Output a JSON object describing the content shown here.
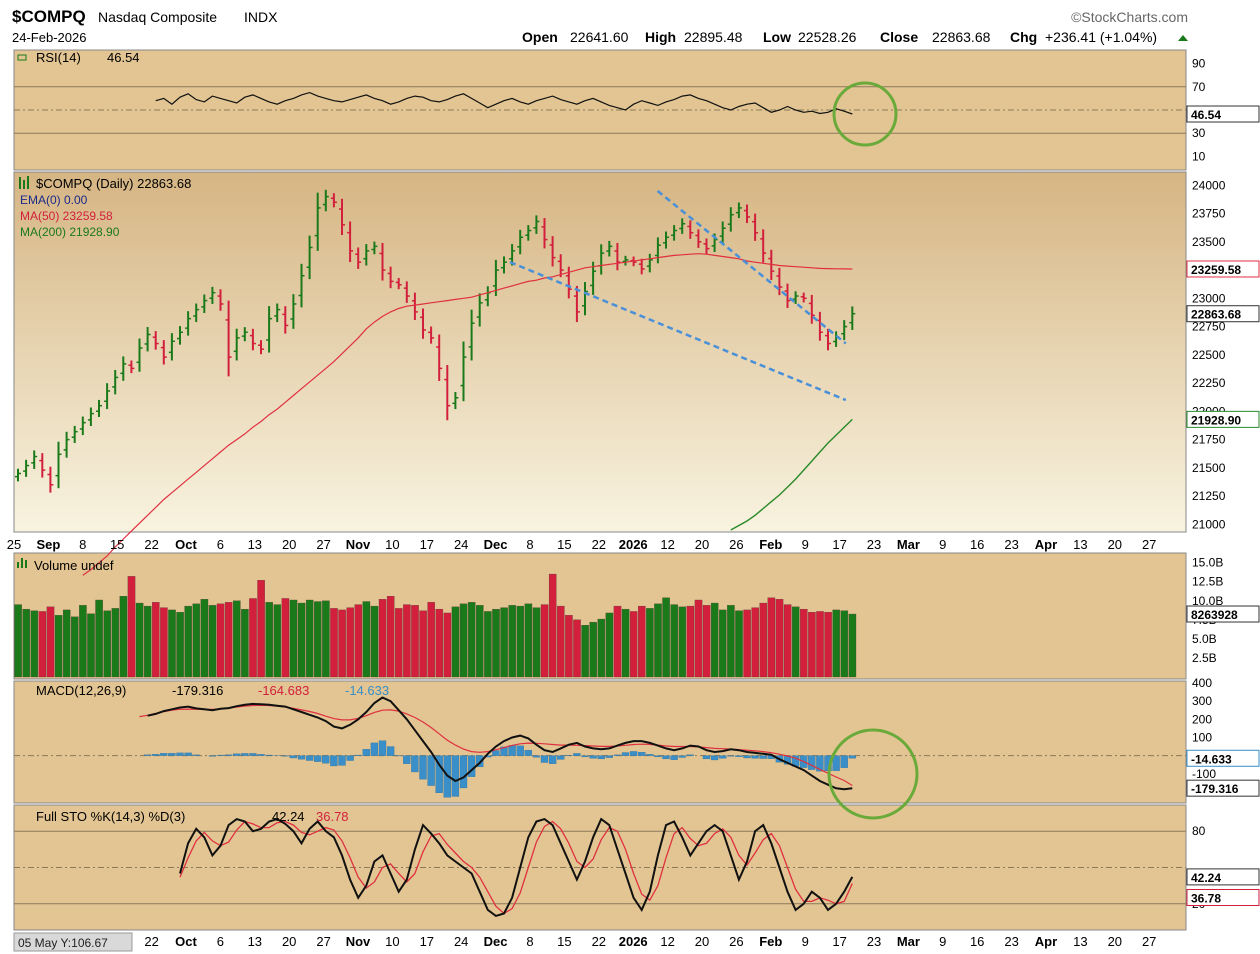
{
  "header": {
    "symbol": "$COMPQ",
    "name": "Nasdaq Composite",
    "exchange": "INDX",
    "date": "24-Feb-2026",
    "brand": "©StockCharts.com",
    "open_label": "Open",
    "open": "22641.60",
    "high_label": "High",
    "high": "22895.48",
    "low_label": "Low",
    "low": "22528.26",
    "close_label": "Close",
    "close": "22863.68",
    "chg_label": "Chg",
    "chg": "+236.41 (+1.04%)"
  },
  "colors": {
    "panel_bg": "#e2c592",
    "price_bg_top": "#d9b989",
    "price_bg_bottom": "#f7f1dc",
    "up": "#1a7a1a",
    "down": "#d21f3c",
    "ma50": "#e03040",
    "ma200": "#2a8a2a",
    "macd_hist": "#3a8fc8",
    "trendline": "#4a90d9",
    "highlight_circle": "#6aaa3a"
  },
  "chart_data": [
    {
      "type": "line",
      "panel": "rsi",
      "title": "RSI(14)",
      "last_value": "46.54",
      "ylim": [
        0,
        100
      ],
      "y_ticks": [
        "90",
        "70",
        "30",
        "10"
      ],
      "reference_lines": [
        70,
        50,
        30
      ],
      "marker": "46.54",
      "values": [
        58,
        60,
        55,
        61,
        64,
        59,
        57,
        62,
        60,
        58,
        56,
        61,
        63,
        60,
        57,
        55,
        58,
        60,
        63,
        65,
        62,
        60,
        58,
        57,
        59,
        61,
        63,
        60,
        58,
        55,
        57,
        60,
        62,
        61,
        58,
        57,
        59,
        62,
        64,
        60,
        56,
        52,
        55,
        58,
        60,
        57,
        55,
        58,
        60,
        62,
        59,
        57,
        55,
        58,
        60,
        57,
        54,
        52,
        50,
        55,
        58,
        56,
        54,
        57,
        59,
        62,
        63,
        60,
        58,
        55,
        52,
        50,
        53,
        55,
        56,
        52,
        48,
        50,
        53,
        50,
        48,
        49,
        47,
        48,
        51,
        49,
        46.54
      ]
    },
    {
      "type": "bar",
      "panel": "price",
      "title": "$COMPQ (Daily) 22863.68",
      "legend": [
        "EMA(0) 0.00",
        "MA(50) 23259.58",
        "MA(200) 21928.90"
      ],
      "ylim": [
        20950,
        24100
      ],
      "y_ticks": [
        "24000",
        "23750",
        "23500",
        "23250",
        "23000",
        "22750",
        "22500",
        "22250",
        "22000",
        "21750",
        "21500",
        "21250",
        "21000"
      ],
      "price_labels": [
        "23259.58",
        "22863.68",
        "21928.90"
      ],
      "x_tick_labels": [
        "25",
        "Sep",
        "8",
        "15",
        "22",
        "Oct",
        "6",
        "13",
        "20",
        "27",
        "Nov",
        "10",
        "17",
        "24",
        "Dec",
        "8",
        "15",
        "22",
        "2026",
        "12",
        "20",
        "26",
        "Feb",
        "9",
        "17",
        "23",
        "Mar",
        "9",
        "16",
        "23",
        "Apr",
        "13",
        "20",
        "27"
      ],
      "closes": [
        21450,
        21520,
        21600,
        21480,
        21350,
        21620,
        21750,
        21820,
        21900,
        21980,
        22050,
        22180,
        22300,
        22420,
        22380,
        22560,
        22680,
        22600,
        22480,
        22620,
        22700,
        22820,
        22900,
        22980,
        23050,
        22950,
        22480,
        22650,
        22700,
        22600,
        22550,
        22820,
        22900,
        22760,
        22950,
        23200,
        23450,
        23800,
        23900,
        23850,
        23650,
        23420,
        23320,
        23420,
        23460,
        23250,
        23150,
        23120,
        23020,
        22880,
        22720,
        22650,
        22380,
        22050,
        22120,
        22480,
        22780,
        22960,
        23050,
        23250,
        23320,
        23420,
        23540,
        23600,
        23680,
        23520,
        23360,
        23250,
        23080,
        22880,
        23060,
        23240,
        23400,
        23460,
        23320,
        23340,
        23320,
        23260,
        23340,
        23470,
        23540,
        23600,
        23660,
        23580,
        23500,
        23440,
        23520,
        23620,
        23740,
        23800,
        23720,
        23580,
        23400,
        23240,
        23100,
        22980,
        23020,
        23000,
        22850,
        22700,
        22600,
        22660,
        22750,
        22864
      ],
      "ma50": [
        20550,
        20600,
        20660,
        20720,
        20800,
        20870,
        20940,
        21010,
        21080,
        21150,
        21220,
        21280,
        21340,
        21400,
        21460,
        21520,
        21580,
        21640,
        21700,
        21750,
        21800,
        21860,
        21910,
        21970,
        22020,
        22080,
        22140,
        22200,
        22260,
        22320,
        22380,
        22440,
        22510,
        22580,
        22650,
        22730,
        22790,
        22840,
        22880,
        22910,
        22930,
        22940,
        22950,
        22960,
        22970,
        22980,
        22990,
        23000,
        23010,
        23030,
        23050,
        23070,
        23090,
        23110,
        23130,
        23150,
        23160,
        23180,
        23190,
        23210,
        23230,
        23250,
        23270,
        23280,
        23290,
        23300,
        23310,
        23320,
        23330,
        23340,
        23350,
        23360,
        23370,
        23380,
        23385,
        23390,
        23395,
        23390,
        23380,
        23370,
        23360,
        23350,
        23330,
        23320,
        23310,
        23300,
        23290,
        23285,
        23280,
        23275,
        23270,
        23265,
        23263,
        23261,
        23260,
        23259.58
      ],
      "ma200": [
        20950,
        20990,
        21030,
        21080,
        21140,
        21200,
        21260,
        21330,
        21400,
        21480,
        21560,
        21640,
        21720,
        21790,
        21860,
        21928.9
      ],
      "trendlines": [
        {
          "from": [
            26,
            23950
          ],
          "to": [
            33,
            22600
          ]
        },
        {
          "from": [
            20,
            23320
          ],
          "to": [
            33,
            22100
          ]
        }
      ]
    },
    {
      "type": "bar",
      "panel": "volume",
      "title": "Volume undef",
      "y_ticks": [
        "15.0B",
        "12.5B",
        "10.0B",
        "7.5B",
        "5.0B",
        "2.5B"
      ],
      "ylim": [
        0,
        16
      ],
      "marker": "8263928",
      "values": [
        9.5,
        8.9,
        8.7,
        8.6,
        9.2,
        8.1,
        8.8,
        7.9,
        9.4,
        8.3,
        10.1,
        8.7,
        9.0,
        10.6,
        13.2,
        9.7,
        9.3,
        9.8,
        9.1,
        8.8,
        8.5,
        9.3,
        9.6,
        10.2,
        9.4,
        9.6,
        9.8,
        10.0,
        8.9,
        10.3,
        12.7,
        9.8,
        9.5,
        10.3,
        10.1,
        9.7,
        10.1,
        9.9,
        10.0,
        9.0,
        8.8,
        9.1,
        9.5,
        9.9,
        9.3,
        10.2,
        10.6,
        9.0,
        9.5,
        9.4,
        8.7,
        9.8,
        8.9,
        8.4,
        9.2,
        9.6,
        9.8,
        9.4,
        8.6,
        8.9,
        9.1,
        9.4,
        9.3,
        9.6,
        9.1,
        9.5,
        13.5,
        9.3,
        8.1,
        7.5,
        6.8,
        7.2,
        7.6,
        8.4,
        9.3,
        8.9,
        8.6,
        9.3,
        9.0,
        9.6,
        10.4,
        9.5,
        9.2,
        9.3,
        10.1,
        9.4,
        9.7,
        8.8,
        9.4,
        8.7,
        8.8,
        9.1,
        9.7,
        10.4,
        10.2,
        9.5,
        9.2,
        8.9,
        8.5,
        8.6,
        8.5,
        8.8,
        8.7,
        8.26
      ]
    },
    {
      "type": "line",
      "panel": "macd",
      "title": "MACD(12,26,9)",
      "macd_value": "-179.316",
      "signal_value": "-164.683",
      "hist_value": "-14.633",
      "ylim": [
        -250,
        400
      ],
      "y_ticks": [
        "400",
        "300",
        "200",
        "100",
        "-100"
      ],
      "markers": [
        "-14.633",
        "-179.316"
      ],
      "macd": [
        220,
        230,
        245,
        255,
        265,
        270,
        260,
        255,
        250,
        258,
        262,
        272,
        280,
        285,
        283,
        280,
        275,
        270,
        255,
        240,
        225,
        210,
        190,
        160,
        150,
        170,
        200,
        240,
        290,
        320,
        300,
        250,
        200,
        140,
        80,
        20,
        -50,
        -110,
        -140,
        -120,
        -80,
        -40,
        10,
        50,
        80,
        100,
        110,
        95,
        60,
        30,
        20,
        40,
        60,
        70,
        50,
        40,
        35,
        40,
        55,
        70,
        80,
        80,
        70,
        55,
        40,
        30,
        40,
        55,
        50,
        30,
        20,
        25,
        35,
        30,
        20,
        15,
        10,
        5,
        -20,
        -40,
        -60,
        -80,
        -110,
        -140,
        -160,
        -180,
        -185,
        -179.316
      ],
      "signal": [
        215,
        222,
        232,
        242,
        250,
        255,
        256,
        255,
        254,
        255,
        257,
        262,
        268,
        273,
        276,
        277,
        276,
        273,
        268,
        260,
        252,
        243,
        232,
        217,
        204,
        197,
        197,
        205,
        220,
        238,
        250,
        252,
        245,
        230,
        210,
        185,
        155,
        120,
        85,
        58,
        36,
        22,
        18,
        22,
        32,
        44,
        56,
        65,
        69,
        68,
        65,
        61,
        58,
        58,
        57,
        55,
        53,
        51,
        51,
        53,
        57,
        61,
        63,
        62,
        58,
        53,
        50,
        50,
        50,
        48,
        44,
        40,
        38,
        36,
        33,
        30,
        26,
        22,
        16,
        8,
        -2,
        -14,
        -33,
        -54,
        -76,
        -97,
        -118,
        -137,
        -164.683
      ],
      "histogram": [
        5,
        8,
        13,
        13,
        15,
        15,
        4,
        0,
        -4,
        3,
        5,
        10,
        12,
        12,
        7,
        3,
        -1,
        -3,
        -13,
        -20,
        -27,
        -33,
        -42,
        -57,
        -54,
        -27,
        3,
        35,
        70,
        82,
        50,
        -2,
        -45,
        -90,
        -130,
        -165,
        -205,
        -230,
        -225,
        -178,
        -116,
        -62,
        -8,
        28,
        48,
        56,
        54,
        30,
        -9,
        -38,
        -45,
        -21,
        2,
        12,
        -7,
        -15,
        -18,
        -11,
        4,
        17,
        23,
        19,
        7,
        -7,
        -18,
        -23,
        -10,
        5,
        0,
        -18,
        -24,
        -15,
        -3,
        -6,
        -13,
        -15,
        -16,
        -17,
        -36,
        -48,
        -58,
        -66,
        -77,
        -86,
        -84,
        -83,
        -67,
        -14.633
      ]
    },
    {
      "type": "line",
      "panel": "stochastic",
      "title": "Full STO %K(14,3) %D(3)",
      "k_value": "42.24",
      "d_value": "36.78",
      "ylim": [
        0,
        100
      ],
      "y_ticks": [
        "80",
        "20"
      ],
      "reference_lines": [
        80,
        50,
        20
      ],
      "markers": [
        "42.24",
        "36.78"
      ],
      "k": [
        45,
        70,
        82,
        75,
        60,
        68,
        85,
        90,
        88,
        80,
        82,
        88,
        90,
        86,
        80,
        70,
        82,
        88,
        80,
        75,
        60,
        40,
        25,
        35,
        55,
        60,
        45,
        30,
        40,
        65,
        85,
        78,
        70,
        60,
        55,
        50,
        45,
        30,
        15,
        10,
        12,
        25,
        50,
        75,
        88,
        90,
        85,
        70,
        55,
        40,
        55,
        75,
        90,
        85,
        65,
        45,
        25,
        15,
        30,
        60,
        85,
        88,
        75,
        60,
        70,
        80,
        85,
        80,
        60,
        40,
        55,
        80,
        85,
        70,
        50,
        30,
        15,
        20,
        30,
        25,
        15,
        20,
        30,
        42.24
      ],
      "d": [
        42,
        58,
        72,
        79,
        72,
        68,
        71,
        81,
        88,
        86,
        83,
        83,
        87,
        88,
        85,
        79,
        77,
        80,
        83,
        81,
        72,
        58,
        42,
        33,
        38,
        50,
        53,
        45,
        38,
        45,
        63,
        76,
        78,
        69,
        62,
        55,
        50,
        42,
        30,
        18,
        12,
        16,
        29,
        50,
        71,
        84,
        88,
        82,
        70,
        55,
        50,
        57,
        73,
        83,
        80,
        65,
        45,
        28,
        23,
        35,
        58,
        78,
        83,
        74,
        68,
        70,
        78,
        82,
        75,
        60,
        52,
        62,
        73,
        78,
        68,
        50,
        32,
        22,
        22,
        25,
        23,
        20,
        22,
        36.78
      ]
    }
  ],
  "time_axis_labels": [
    "25",
    "Sep",
    "8",
    "15",
    "22",
    "Oct",
    "6",
    "13",
    "20",
    "27",
    "Nov",
    "10",
    "17",
    "24",
    "Dec",
    "8",
    "15",
    "22",
    "2026",
    "12",
    "20",
    "26",
    "Feb",
    "9",
    "17",
    "23",
    "Mar",
    "9",
    "16",
    "23",
    "Apr",
    "13",
    "20",
    "27"
  ],
  "bottom_tooltip": "05 May Y:106.67"
}
